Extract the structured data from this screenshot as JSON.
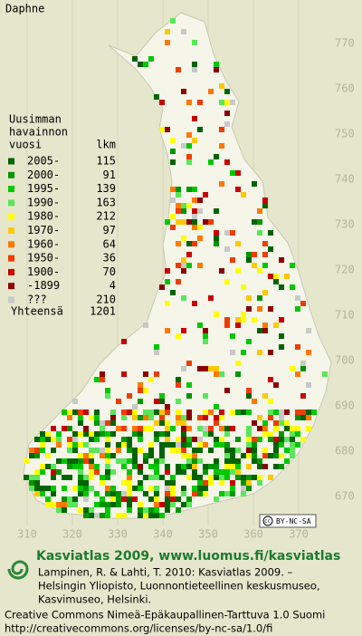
{
  "map": {
    "title": "Daphne",
    "y_labels": [
      770,
      760,
      750,
      740,
      730,
      720,
      710,
      700,
      690,
      680,
      670
    ],
    "x_labels": [
      310,
      320,
      330,
      340,
      350,
      360,
      370
    ],
    "license_badge": "BY-NC-SA"
  },
  "legend": {
    "heading": [
      "Uusimman",
      "havainnon",
      "vuosi"
    ],
    "count_heading": "lkm",
    "items": [
      {
        "label": "2005-",
        "count": 115,
        "color": "#006400"
      },
      {
        "label": "2000-",
        "count": 91,
        "color": "#009600"
      },
      {
        "label": "1995-",
        "count": 139,
        "color": "#00c800"
      },
      {
        "label": "1990-",
        "count": 163,
        "color": "#5ae65a"
      },
      {
        "label": "1980-",
        "count": 212,
        "color": "#ffff00"
      },
      {
        "label": "1970-",
        "count": 97,
        "color": "#ffc800"
      },
      {
        "label": "1960-",
        "count": 64,
        "color": "#ff7800"
      },
      {
        "label": "1950-",
        "count": 36,
        "color": "#f03c00"
      },
      {
        "label": "1900-",
        "count": 70,
        "color": "#c80000"
      },
      {
        "label": "-1899",
        "count": 4,
        "color": "#8c0000"
      },
      {
        "label": "???",
        "count": 210,
        "color": "#c8c8c8"
      }
    ],
    "total_label": "Yhteensä",
    "total": 1201
  },
  "footer": {
    "logo_title": "Kasviatlas 2009, www.luomus.fi/kasviatlas",
    "citation": [
      "Lampinen, R. & Lahti, T. 2010: Kasviatlas 2009. –",
      "Helsingin Yliopisto, Luonnontieteellinen keskusmuseo,",
      "Kasvimuseo, Helsinki."
    ],
    "license": [
      "Creative Commons Nimeä-Epäkaupallinen-Tarttuva 1.0 Suomi",
      "http://creativecommons.org/licenses/by-nc-sa/1.0/fi"
    ]
  }
}
